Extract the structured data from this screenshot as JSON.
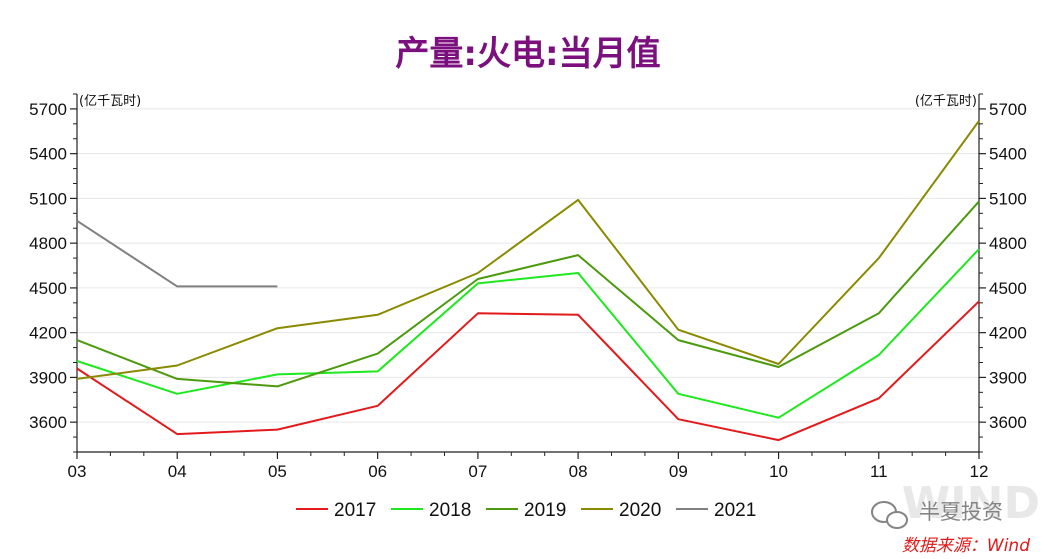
{
  "chart_data": {
    "type": "line",
    "title": "产量:火电:当月值",
    "unit_left": "(亿千瓦时)",
    "unit_right": "(亿千瓦时)",
    "categories": [
      "03",
      "04",
      "05",
      "06",
      "07",
      "08",
      "09",
      "10",
      "11",
      "12"
    ],
    "ylim": [
      3400,
      5800
    ],
    "yticks": [
      3600,
      3900,
      4200,
      4500,
      4800,
      5100,
      5400,
      5700
    ],
    "series": [
      {
        "name": "2017",
        "color": "#e31a1c",
        "values": [
          3960,
          3520,
          3550,
          3710,
          4330,
          4320,
          3620,
          3480,
          3760,
          4410
        ]
      },
      {
        "name": "2018",
        "color": "#1ee81e",
        "values": [
          4010,
          3790,
          3920,
          3940,
          4530,
          4600,
          3790,
          3630,
          4050,
          4760
        ]
      },
      {
        "name": "2019",
        "color": "#4c9a0e",
        "values": [
          4150,
          3890,
          3840,
          4060,
          4560,
          4720,
          4150,
          3970,
          4330,
          5080
        ]
      },
      {
        "name": "2020",
        "color": "#8a8a00",
        "values": [
          3890,
          3980,
          4230,
          4320,
          4600,
          5090,
          4220,
          3990,
          4700,
          5620
        ]
      },
      {
        "name": "2021",
        "color": "#808080",
        "values": [
          4950,
          4510,
          4510,
          null,
          null,
          null,
          null,
          null,
          null,
          null
        ]
      }
    ]
  },
  "watermark": {
    "brand": "半夏投资",
    "source": "数据来源：Wind"
  }
}
